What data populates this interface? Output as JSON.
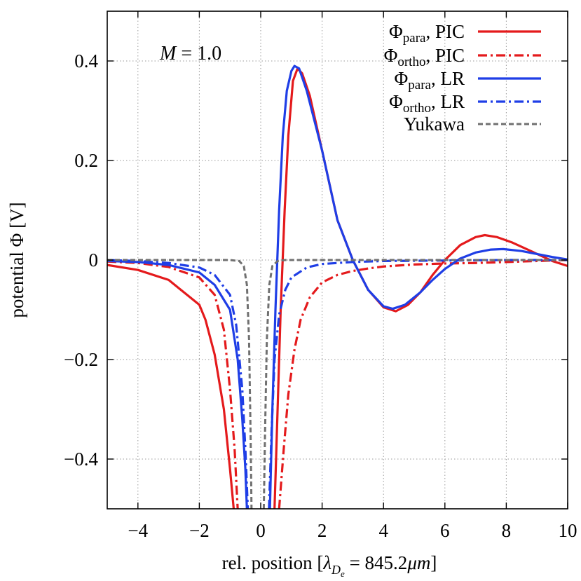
{
  "chart_data": {
    "type": "line",
    "xlabel": {
      "prefix": "rel. position [",
      "sym": "λ",
      "sub": "D",
      "subsub": "e",
      "rest": " = 845.2",
      "mu": "μm",
      "suffix": "]"
    },
    "ylabel": {
      "prefix": "potential ",
      "sym": "Φ",
      "suffix": " [V]"
    },
    "annotation": {
      "var": "M",
      "rest": " = 1.0"
    },
    "xlim": [
      -5,
      10
    ],
    "ylim": [
      -0.5,
      0.5
    ],
    "xticks": [
      -4,
      -2,
      0,
      2,
      4,
      6,
      8,
      10
    ],
    "xtick_labels": [
      "−4",
      "−2",
      "0",
      "2",
      "4",
      "6",
      "8",
      "10"
    ],
    "yticks": [
      -0.4,
      -0.2,
      0,
      0.2,
      0.4
    ],
    "ytick_labels": [
      "−0.4",
      "−0.2",
      "0",
      "0.2",
      "0.4"
    ],
    "grid": true,
    "legend_position": "top-right",
    "series": [
      {
        "name": "Φpara, PIC",
        "label_main": "Φ",
        "label_sub": "para",
        "label_rest": ", PIC",
        "color": "#e41a1c",
        "style": "solid",
        "width": 3.2,
        "points": [
          [
            -5,
            -0.01
          ],
          [
            -4,
            -0.02
          ],
          [
            -3,
            -0.04
          ],
          [
            -2.5,
            -0.065
          ],
          [
            -2,
            -0.09
          ],
          [
            -1.8,
            -0.12
          ],
          [
            -1.5,
            -0.19
          ],
          [
            -1.2,
            -0.3
          ],
          [
            -1.0,
            -0.42
          ],
          [
            -0.88,
            -0.5
          ],
          null,
          [
            0.45,
            -0.5
          ],
          [
            0.55,
            -0.3
          ],
          [
            0.65,
            -0.1
          ],
          [
            0.78,
            0.1
          ],
          [
            0.9,
            0.25
          ],
          [
            1.05,
            0.36
          ],
          [
            1.2,
            0.385
          ],
          [
            1.35,
            0.375
          ],
          [
            1.6,
            0.33
          ],
          [
            2.0,
            0.22
          ],
          [
            2.5,
            0.08
          ],
          [
            3.0,
            0.0
          ],
          [
            3.5,
            -0.06
          ],
          [
            4.0,
            -0.095
          ],
          [
            4.4,
            -0.103
          ],
          [
            4.8,
            -0.09
          ],
          [
            5.2,
            -0.065
          ],
          [
            5.6,
            -0.03
          ],
          [
            6.0,
            0.0
          ],
          [
            6.5,
            0.03
          ],
          [
            7.0,
            0.046
          ],
          [
            7.3,
            0.05
          ],
          [
            7.7,
            0.046
          ],
          [
            8.2,
            0.035
          ],
          [
            8.8,
            0.018
          ],
          [
            9.5,
            -0.002
          ],
          [
            10,
            -0.012
          ]
        ]
      },
      {
        "name": "Φortho, PIC",
        "label_main": "Φ",
        "label_sub": "ortho",
        "label_rest": ", PIC",
        "color": "#e41a1c",
        "style": "dashdot",
        "width": 3.2,
        "points": [
          [
            -5,
            -0.003
          ],
          [
            -4,
            -0.006
          ],
          [
            -3,
            -0.014
          ],
          [
            -2,
            -0.035
          ],
          [
            -1.5,
            -0.07
          ],
          [
            -1.2,
            -0.14
          ],
          [
            -1.0,
            -0.26
          ],
          [
            -0.85,
            -0.38
          ],
          [
            -0.75,
            -0.5
          ],
          null,
          [
            0.6,
            -0.5
          ],
          [
            0.75,
            -0.38
          ],
          [
            0.9,
            -0.27
          ],
          [
            1.1,
            -0.18
          ],
          [
            1.3,
            -0.12
          ],
          [
            1.6,
            -0.075
          ],
          [
            2.0,
            -0.045
          ],
          [
            2.5,
            -0.03
          ],
          [
            3.0,
            -0.022
          ],
          [
            3.5,
            -0.017
          ],
          [
            4.0,
            -0.013
          ],
          [
            5.0,
            -0.009
          ],
          [
            6.0,
            -0.007
          ],
          [
            7.0,
            -0.006
          ],
          [
            8.0,
            -0.004
          ],
          [
            9.0,
            -0.002
          ],
          [
            10,
            0.0
          ]
        ]
      },
      {
        "name": "Φpara, LR",
        "label_main": "Φ",
        "label_sub": "para",
        "label_rest": ", LR",
        "color": "#1f3ee6",
        "style": "solid",
        "width": 3.2,
        "points": [
          [
            -5,
            -0.002
          ],
          [
            -4,
            -0.004
          ],
          [
            -3,
            -0.01
          ],
          [
            -2,
            -0.025
          ],
          [
            -1.5,
            -0.05
          ],
          [
            -1.0,
            -0.1
          ],
          [
            -0.75,
            -0.2
          ],
          [
            -0.6,
            -0.32
          ],
          [
            -0.5,
            -0.42
          ],
          [
            -0.45,
            -0.5
          ],
          null,
          [
            0.3,
            -0.5
          ],
          [
            0.38,
            -0.3
          ],
          [
            0.48,
            -0.1
          ],
          [
            0.6,
            0.1
          ],
          [
            0.72,
            0.25
          ],
          [
            0.85,
            0.34
          ],
          [
            1.0,
            0.38
          ],
          [
            1.1,
            0.39
          ],
          [
            1.25,
            0.385
          ],
          [
            1.5,
            0.34
          ],
          [
            2.0,
            0.22
          ],
          [
            2.5,
            0.08
          ],
          [
            3.0,
            0.0
          ],
          [
            3.5,
            -0.06
          ],
          [
            4.0,
            -0.093
          ],
          [
            4.3,
            -0.098
          ],
          [
            4.7,
            -0.09
          ],
          [
            5.2,
            -0.065
          ],
          [
            5.6,
            -0.04
          ],
          [
            6.0,
            -0.018
          ],
          [
            6.5,
            0.003
          ],
          [
            7.0,
            0.015
          ],
          [
            7.5,
            0.021
          ],
          [
            7.9,
            0.022
          ],
          [
            8.5,
            0.018
          ],
          [
            9.0,
            0.012
          ],
          [
            9.5,
            0.006
          ],
          [
            10,
            0.001
          ]
        ]
      },
      {
        "name": "Φortho, LR",
        "label_main": "Φ",
        "label_sub": "ortho",
        "label_rest": ", LR",
        "color": "#1f3ee6",
        "style": "dashdot",
        "width": 3.2,
        "points": [
          [
            -5,
            0.0
          ],
          [
            -4,
            -0.002
          ],
          [
            -3,
            -0.006
          ],
          [
            -2,
            -0.015
          ],
          [
            -1.5,
            -0.03
          ],
          [
            -1.0,
            -0.07
          ],
          [
            -0.8,
            -0.13
          ],
          [
            -0.6,
            -0.26
          ],
          [
            -0.5,
            -0.38
          ],
          [
            -0.42,
            -0.5
          ],
          null,
          [
            0.27,
            -0.5
          ],
          [
            0.35,
            -0.35
          ],
          [
            0.45,
            -0.2
          ],
          [
            0.6,
            -0.11
          ],
          [
            0.8,
            -0.06
          ],
          [
            1.0,
            -0.035
          ],
          [
            1.5,
            -0.015
          ],
          [
            2.0,
            -0.008
          ],
          [
            3.0,
            -0.004
          ],
          [
            4.0,
            -0.002
          ],
          [
            6.0,
            -0.001
          ],
          [
            8.0,
            0.0
          ],
          [
            10,
            0.0
          ]
        ]
      },
      {
        "name": "Yukawa",
        "label_main": "Yukawa",
        "label_sub": "",
        "label_rest": "",
        "color": "#707070",
        "style": "dashed",
        "width": 3.0,
        "points": [
          [
            -5,
            0.0
          ],
          [
            -1.0,
            0.0
          ],
          [
            -0.7,
            -0.002
          ],
          [
            -0.55,
            -0.012
          ],
          [
            -0.45,
            -0.05
          ],
          [
            -0.38,
            -0.16
          ],
          [
            -0.33,
            -0.35
          ],
          [
            -0.3,
            -0.5
          ],
          null,
          [
            0.1,
            -0.5
          ],
          [
            0.14,
            -0.35
          ],
          [
            0.2,
            -0.16
          ],
          [
            0.28,
            -0.05
          ],
          [
            0.38,
            -0.012
          ],
          [
            0.55,
            -0.002
          ],
          [
            0.8,
            0.0
          ],
          [
            10,
            0.0
          ]
        ]
      }
    ]
  }
}
